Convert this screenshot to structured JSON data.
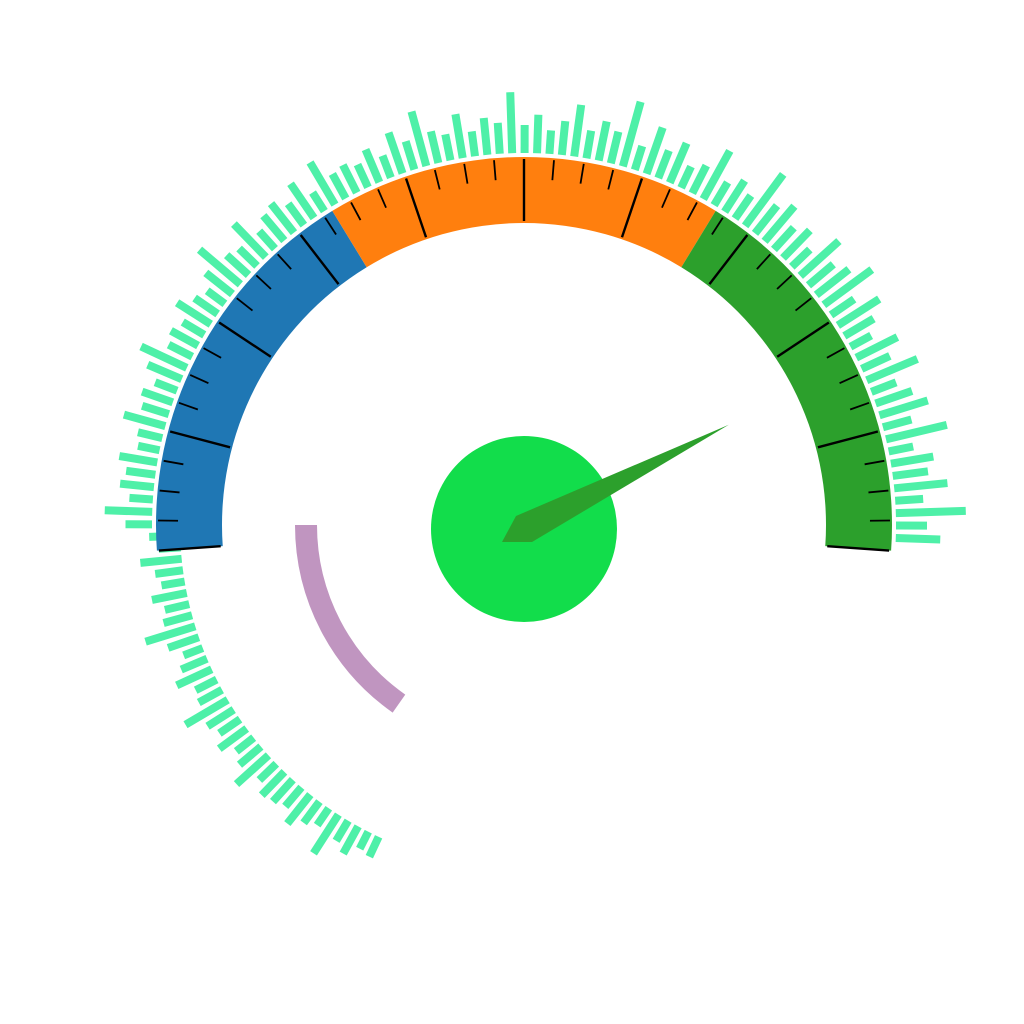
{
  "chart_data": {
    "type": "gauge",
    "title": "",
    "value_fraction": 0.84,
    "bands": [
      {
        "from": 0.0,
        "to": 0.333,
        "color": "#1f77b4"
      },
      {
        "from": 0.333,
        "to": 0.667,
        "color": "#ff7f0e"
      },
      {
        "from": 0.667,
        "to": 1.0,
        "color": "#2ca02c"
      }
    ],
    "minor_ticks": 40,
    "major_every": 4,
    "needle_color": "#2ca02c",
    "hub_color": "#12dd4b",
    "indicator_arc": {
      "from_deg": 180,
      "to_deg": 235,
      "color": "#c095c0"
    },
    "radial_bars": {
      "color": "#4ef0a8",
      "from_deg": 245,
      "to_deg": 358,
      "values": [
        8,
        6,
        14,
        9,
        24,
        7,
        11,
        18,
        10,
        13,
        15,
        9,
        22,
        12,
        8,
        16,
        10,
        14,
        26,
        11,
        9,
        19,
        12,
        7,
        15,
        28,
        13,
        10,
        17,
        9,
        12,
        21,
        8,
        14,
        11,
        25,
        9,
        16,
        13,
        19,
        8,
        10,
        22,
        12,
        15,
        9,
        18,
        27,
        11,
        14,
        10,
        20,
        12,
        8,
        16,
        29,
        13,
        10,
        24,
        9,
        15,
        18,
        11,
        21,
        8,
        26,
        12,
        14,
        10,
        17,
        9,
        22,
        13,
        31,
        15,
        11,
        23,
        10,
        18,
        14,
        34,
        12,
        19,
        9,
        16,
        28,
        12,
        20,
        15,
        38,
        10,
        26,
        13,
        22,
        9,
        14,
        30,
        11,
        18,
        12,
        36,
        17,
        24,
        13,
        19,
        10,
        28,
        15,
        21,
        33,
        12,
        26,
        16,
        9,
        24,
        14,
        30,
        11,
        19,
        27,
        13,
        35,
        10,
        22,
        17,
        29,
        12,
        40,
        14,
        23
      ]
    }
  }
}
